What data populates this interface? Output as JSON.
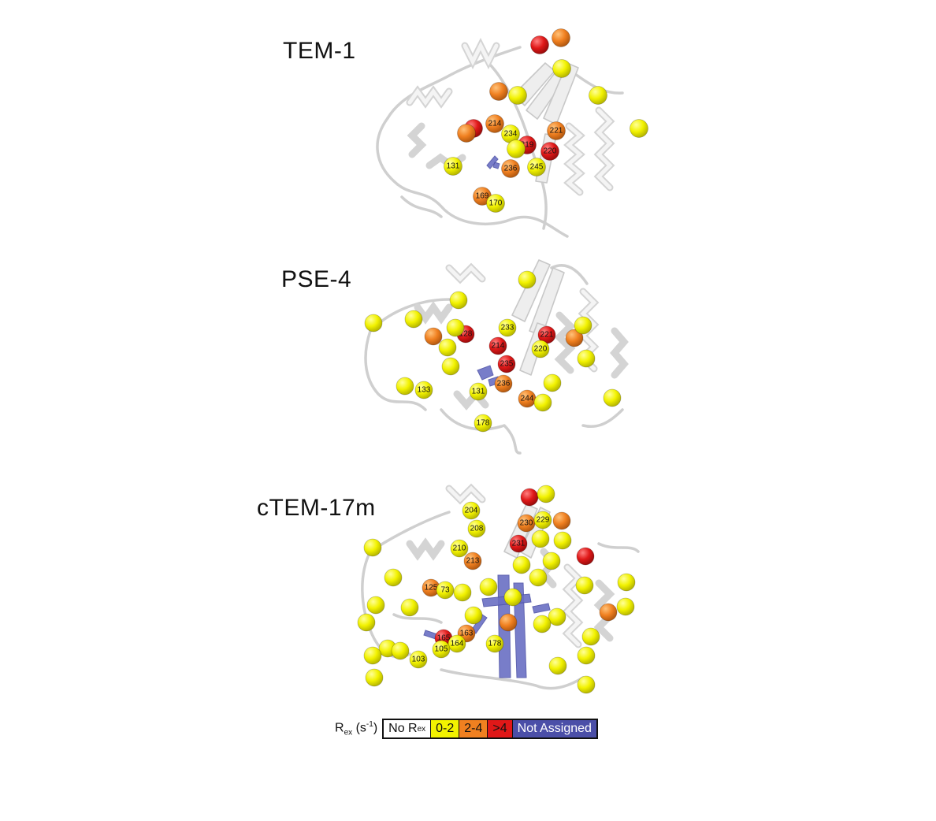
{
  "panels": [
    {
      "label": "TEM-1"
    },
    {
      "label": "PSE-4"
    },
    {
      "label": "cTEM-17m"
    }
  ],
  "colors": {
    "no_rex": "#ffffff",
    "low": "#f2f200",
    "mid": "#f08020",
    "high": "#e01818",
    "not_assigned": "#4b4fa8"
  },
  "legend": {
    "axis_label_prefix": "R",
    "axis_label_sub": "ex",
    "axis_label_unit": "(s",
    "axis_label_exp": "-1",
    "axis_label_close": ")",
    "no_rex_prefix": "No R",
    "no_rex_sub": "ex",
    "bins": [
      {
        "label": "0-2",
        "class": "low"
      },
      {
        "label": "2-4",
        "class": "mid"
      },
      {
        "label": ">4",
        "class": "high"
      },
      {
        "label": "Not Assigned",
        "class": "not_assigned"
      }
    ]
  },
  "residues": {
    "tem1": [
      {
        "id": "214",
        "class": "mid"
      },
      {
        "id": "234",
        "class": "low"
      },
      {
        "id": "221",
        "class": "mid"
      },
      {
        "id": "219",
        "class": "high"
      },
      {
        "id": "220",
        "class": "high"
      },
      {
        "id": "236",
        "class": "mid"
      },
      {
        "id": "245",
        "class": "low"
      },
      {
        "id": "131",
        "class": "low"
      },
      {
        "id": "169",
        "class": "mid"
      },
      {
        "id": "170",
        "class": "low"
      },
      {
        "id": "",
        "class": "high"
      },
      {
        "id": "",
        "class": "mid"
      },
      {
        "id": "",
        "class": "low"
      },
      {
        "id": "",
        "class": "mid"
      },
      {
        "id": "",
        "class": "low"
      },
      {
        "id": "",
        "class": "low"
      },
      {
        "id": "",
        "class": "low"
      },
      {
        "id": "",
        "class": "high"
      },
      {
        "id": "",
        "class": "low"
      },
      {
        "id": "",
        "class": "mid"
      }
    ],
    "pse4": [
      {
        "id": "233",
        "class": "low"
      },
      {
        "id": "128",
        "class": "high"
      },
      {
        "id": "221",
        "class": "high"
      },
      {
        "id": "214",
        "class": "high"
      },
      {
        "id": "220",
        "class": "low"
      },
      {
        "id": "235",
        "class": "high"
      },
      {
        "id": "236",
        "class": "mid"
      },
      {
        "id": "131",
        "class": "low"
      },
      {
        "id": "133",
        "class": "low"
      },
      {
        "id": "244",
        "class": "mid"
      },
      {
        "id": "178",
        "class": "low"
      },
      {
        "id": "",
        "class": "low"
      },
      {
        "id": "",
        "class": "low"
      },
      {
        "id": "",
        "class": "low"
      },
      {
        "id": "",
        "class": "low"
      },
      {
        "id": "",
        "class": "mid"
      },
      {
        "id": "",
        "class": "low"
      },
      {
        "id": "",
        "class": "mid"
      },
      {
        "id": "",
        "class": "low"
      },
      {
        "id": "",
        "class": "low"
      },
      {
        "id": "",
        "class": "low"
      },
      {
        "id": "",
        "class": "low"
      },
      {
        "id": "",
        "class": "low"
      },
      {
        "id": "",
        "class": "low"
      },
      {
        "id": "",
        "class": "low"
      },
      {
        "id": "",
        "class": "low"
      }
    ],
    "ctem": [
      {
        "id": "204",
        "class": "low"
      },
      {
        "id": "208",
        "class": "low"
      },
      {
        "id": "230",
        "class": "mid"
      },
      {
        "id": "229",
        "class": "low"
      },
      {
        "id": "231",
        "class": "high"
      },
      {
        "id": "210",
        "class": "low"
      },
      {
        "id": "213",
        "class": "mid"
      },
      {
        "id": "125",
        "class": "mid"
      },
      {
        "id": "73",
        "class": "low"
      },
      {
        "id": "165",
        "class": "high"
      },
      {
        "id": "163",
        "class": "mid"
      },
      {
        "id": "164",
        "class": "low"
      },
      {
        "id": "105",
        "class": "low"
      },
      {
        "id": "103",
        "class": "low"
      },
      {
        "id": "178",
        "class": "low"
      },
      {
        "id": "",
        "class": "high"
      },
      {
        "id": "",
        "class": "low"
      },
      {
        "id": "",
        "class": "mid"
      },
      {
        "id": "",
        "class": "low"
      },
      {
        "id": "",
        "class": "high"
      },
      {
        "id": "",
        "class": "low"
      },
      {
        "id": "",
        "class": "low"
      },
      {
        "id": "",
        "class": "low"
      },
      {
        "id": "",
        "class": "low"
      },
      {
        "id": "",
        "class": "mid"
      },
      {
        "id": "",
        "class": "low"
      },
      {
        "id": "",
        "class": "low"
      },
      {
        "id": "",
        "class": "low"
      },
      {
        "id": "",
        "class": "low"
      },
      {
        "id": "",
        "class": "low"
      },
      {
        "id": "",
        "class": "low"
      },
      {
        "id": "",
        "class": "low"
      },
      {
        "id": "",
        "class": "low"
      },
      {
        "id": "",
        "class": "low"
      },
      {
        "id": "",
        "class": "low"
      },
      {
        "id": "",
        "class": "low"
      },
      {
        "id": "",
        "class": "low"
      },
      {
        "id": "",
        "class": "low"
      },
      {
        "id": "",
        "class": "low"
      },
      {
        "id": "",
        "class": "low"
      },
      {
        "id": "",
        "class": "low"
      },
      {
        "id": "",
        "class": "low"
      },
      {
        "id": "",
        "class": "low"
      },
      {
        "id": "",
        "class": "low"
      },
      {
        "id": "",
        "class": "low"
      },
      {
        "id": "",
        "class": "low"
      },
      {
        "id": "",
        "class": "mid"
      },
      {
        "id": "",
        "class": "low"
      }
    ]
  }
}
